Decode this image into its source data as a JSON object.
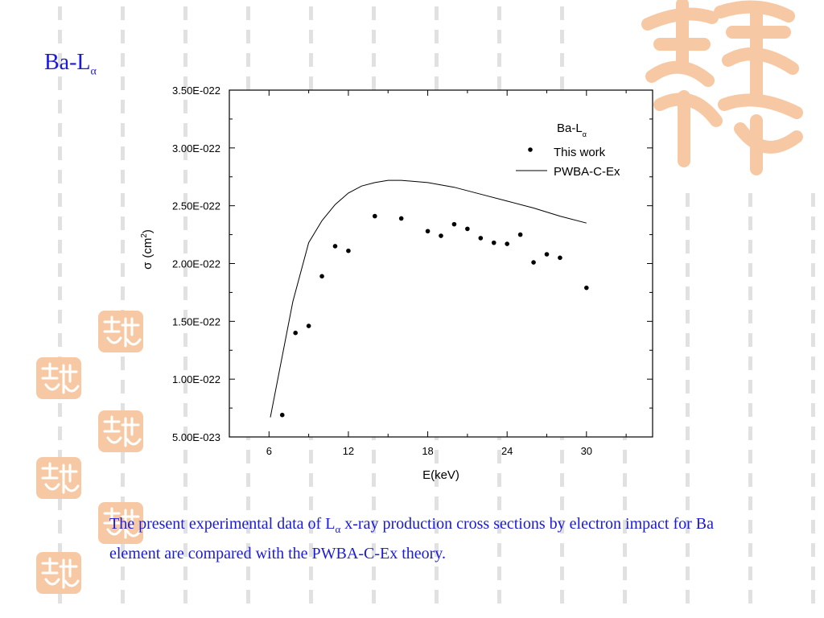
{
  "slide": {
    "title_main": "Ba-L",
    "title_sub": "α",
    "caption": {
      "part1": "The present experimental data of L",
      "sub": "α",
      "part2": " x-ray production cross sections by electron impact for Ba element are compared with the PWBA-C-Ex theory."
    }
  },
  "colors": {
    "text": "#1a1adb",
    "ornament": "#f6c9a4",
    "ornament_stripes": "#c8c8c8"
  },
  "chart_data": {
    "type": "scatter",
    "xlabel": "E(keV)",
    "ylabel_sigma": "σ",
    "ylabel_unit": "(cm",
    "ylabel_exp": "2",
    "ylabel_close": ")",
    "xlim": [
      3,
      35
    ],
    "ylim": [
      5e-23,
      3.5e-22
    ],
    "x_ticks": [
      6,
      12,
      18,
      24,
      30
    ],
    "x_tick_labels": [
      "6",
      "12",
      "18",
      "24",
      "30"
    ],
    "y_ticks": [
      5e-23,
      1e-22,
      1.5e-22,
      2e-22,
      2.5e-22,
      3e-22,
      3.5e-22
    ],
    "y_tick_labels": [
      "5.00E-023",
      "1.00E-022",
      "1.50E-022",
      "2.00E-022",
      "2.50E-022",
      "3.00E-022",
      "3.50E-022"
    ],
    "legend": {
      "title_main": "Ba-L",
      "title_sub": "α",
      "position": "top-right"
    },
    "series": [
      {
        "name": "This work",
        "kind": "scatter",
        "x": [
          7,
          8,
          9,
          10,
          11,
          12,
          14,
          16,
          18,
          19,
          20,
          21,
          22,
          23,
          24,
          25,
          26,
          27,
          28,
          30
        ],
        "y": [
          6.9e-23,
          1.4e-22,
          1.46e-22,
          1.89e-22,
          2.15e-22,
          2.11e-22,
          2.41e-22,
          2.39e-22,
          2.28e-22,
          2.24e-22,
          2.34e-22,
          2.3e-22,
          2.22e-22,
          2.18e-22,
          2.17e-22,
          2.25e-22,
          2.01e-22,
          2.08e-22,
          2.05e-22,
          1.79e-22
        ]
      },
      {
        "name": "PWBA-C-Ex",
        "kind": "line",
        "x": [
          6.1,
          7.0,
          7.8,
          9.0,
          10.0,
          11.0,
          12.0,
          13.0,
          14.0,
          15.0,
          16.0,
          18.0,
          20.0,
          22.0,
          24.0,
          26.0,
          28.0,
          30.0
        ],
        "y": [
          6.7e-23,
          1.2e-22,
          1.67e-22,
          2.18e-22,
          2.37e-22,
          2.51e-22,
          2.61e-22,
          2.67e-22,
          2.7e-22,
          2.72e-22,
          2.72e-22,
          2.7e-22,
          2.66e-22,
          2.6e-22,
          2.54e-22,
          2.48e-22,
          2.41e-22,
          2.35e-22
        ]
      }
    ]
  }
}
